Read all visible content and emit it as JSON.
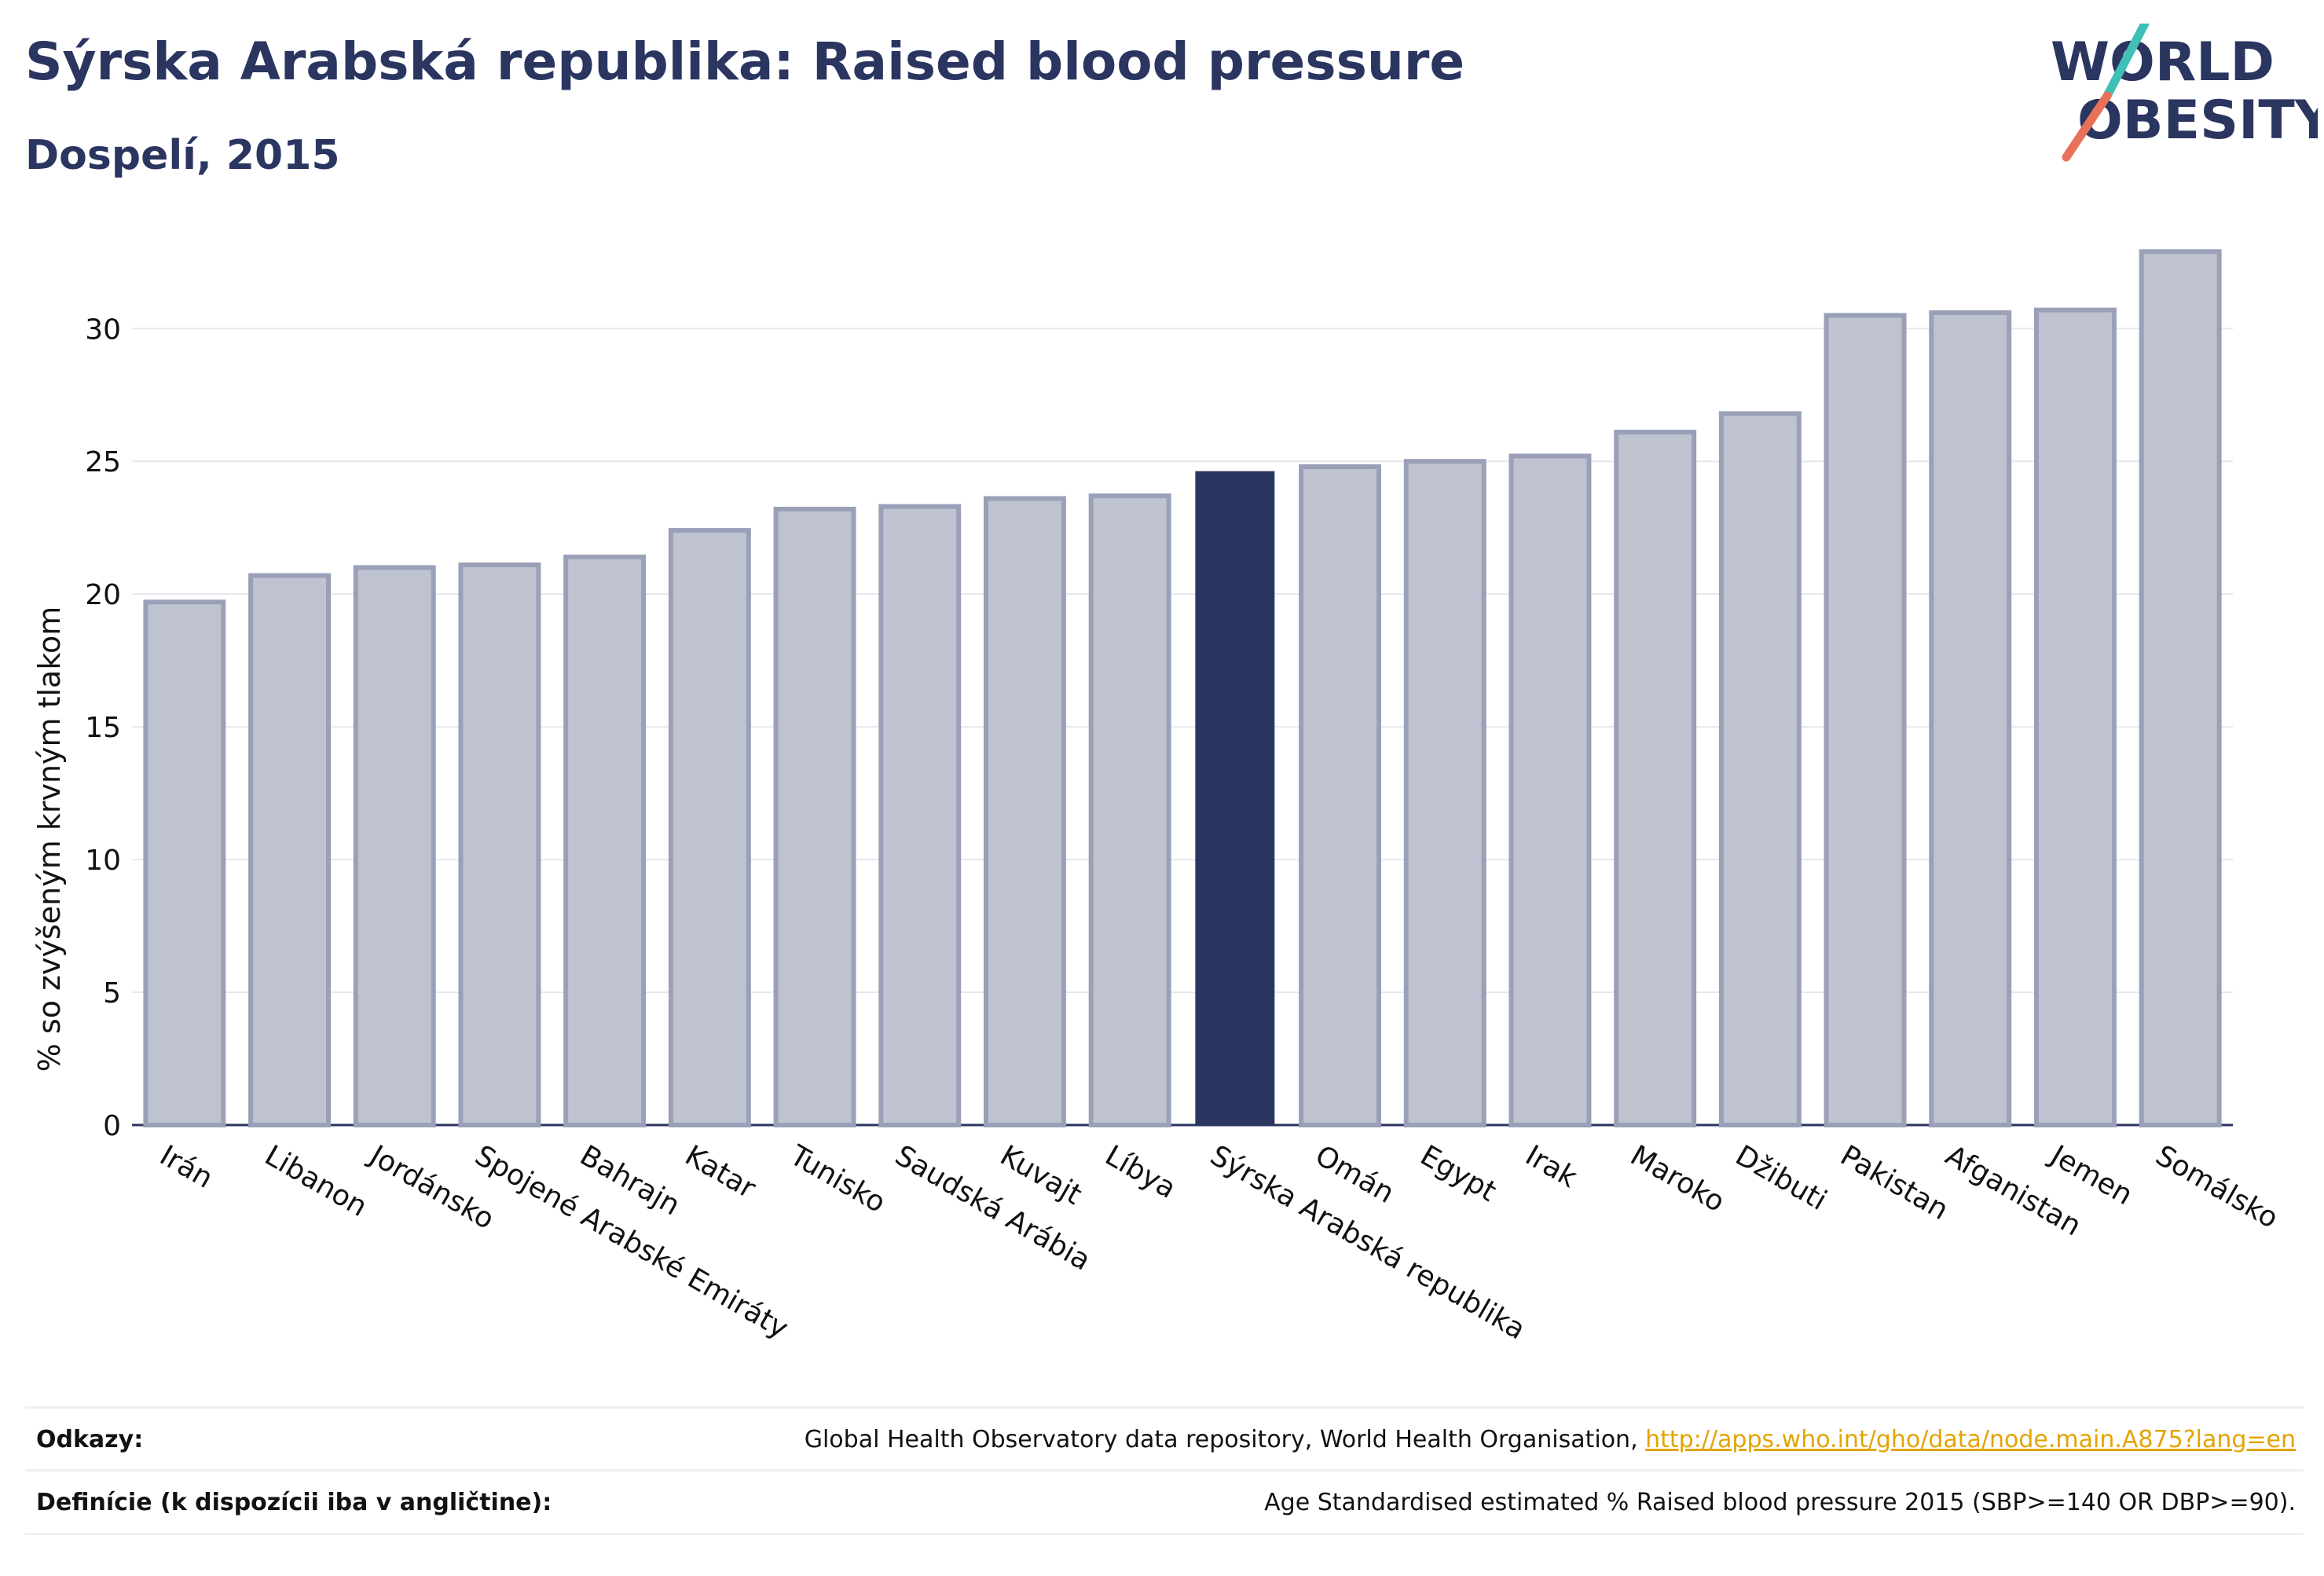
{
  "header": {
    "title": "Sýrska Arabská republika: Raised blood pressure",
    "subtitle": "Dospelí, 2015"
  },
  "logo": {
    "line1": "WORLD",
    "line2": "OBESITY",
    "slash_color_top": "#3fbfb5",
    "slash_color_bottom": "#e8715a"
  },
  "chart_data": {
    "type": "bar",
    "ylabel": "% so zvýšeným krvným tlakom",
    "xlabel": "",
    "ylim": [
      0,
      33.5
    ],
    "yticks": [
      0,
      5,
      10,
      15,
      20,
      25,
      30
    ],
    "grid": true,
    "highlight": "Sýrska Arabská republika",
    "colors": {
      "bar": "#bfc3cf",
      "bar_border": "#9aa0b8",
      "highlight": "#2a3560"
    },
    "categories": [
      "Irán",
      "Libanon",
      "Jordánsko",
      "Spojené Arabské Emiráty",
      "Bahrajn",
      "Katar",
      "Tunisko",
      "Saudská Arábia",
      "Kuvajt",
      "Líbya",
      "Sýrska Arabská republika",
      "Omán",
      "Egypt",
      "Irak",
      "Maroko",
      "Džibuti",
      "Pakistan",
      "Afganistan",
      "Jemen",
      "Somálsko"
    ],
    "values": [
      19.7,
      20.7,
      21.0,
      21.1,
      21.4,
      22.4,
      23.2,
      23.3,
      23.6,
      23.7,
      24.6,
      24.8,
      25.0,
      25.2,
      26.1,
      26.8,
      30.5,
      30.6,
      30.7,
      32.9
    ]
  },
  "footer": {
    "references_label": "Odkazy:",
    "references_text": "Global Health Observatory data repository, World Health Organisation, ",
    "references_link": "http://apps.who.int/gho/data/node.main.A875?lang=en",
    "definitions_label": "Definície (k dispozícii iba v angličtine):",
    "definitions_text": "Age Standardised estimated % Raised blood pressure 2015 (SBP>=140 OR DBP>=90)."
  }
}
